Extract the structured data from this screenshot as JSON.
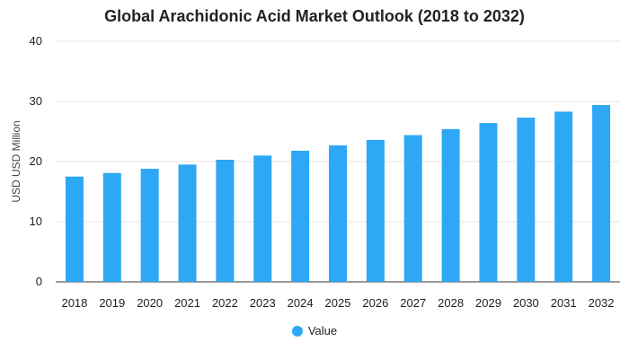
{
  "chart_data": {
    "type": "bar",
    "title": "Global Arachidonic Acid Market Outlook (2018 to 2032)",
    "xlabel": "",
    "ylabel": "USD USD Million",
    "ylim": [
      0,
      40
    ],
    "yticks": [
      0,
      10,
      20,
      30,
      40
    ],
    "grid": true,
    "legend": "bottom-center",
    "categories": [
      "2018",
      "2019",
      "2020",
      "2021",
      "2022",
      "2023",
      "2024",
      "2025",
      "2026",
      "2027",
      "2028",
      "2029",
      "2030",
      "2031",
      "2032"
    ],
    "series": [
      {
        "name": "Value",
        "color": "#2ea8f5",
        "values": [
          17.5,
          18.1,
          18.8,
          19.5,
          20.3,
          21.0,
          21.8,
          22.7,
          23.6,
          24.4,
          25.4,
          26.4,
          27.3,
          28.3,
          29.4
        ]
      }
    ]
  }
}
